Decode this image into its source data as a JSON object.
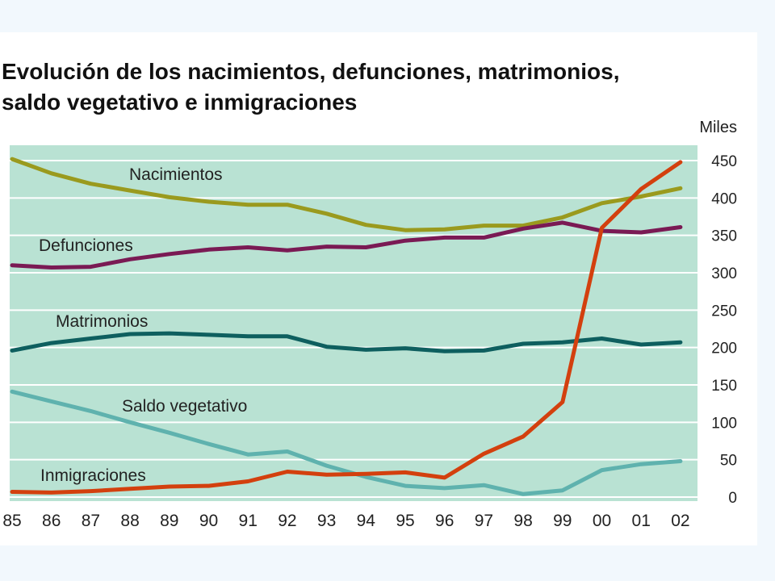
{
  "title_lines": [
    "Evolución de los nacimientos, defunciones, matrimonios,",
    "saldo vegetativo e inmigraciones"
  ],
  "colors": {
    "background": "#f2f8fd",
    "plot_background": "#b9e2d3",
    "gridline": "#ffffff"
  },
  "chart_data": {
    "type": "line",
    "title": "Evolución de los nacimientos, defunciones, matrimonios, saldo vegetativo e inmigraciones",
    "unit_label": "Miles",
    "xlabel": "",
    "ylabel": "",
    "x": [
      "85",
      "86",
      "87",
      "88",
      "89",
      "90",
      "91",
      "92",
      "93",
      "94",
      "95",
      "96",
      "97",
      "98",
      "99",
      "00",
      "01",
      "02"
    ],
    "ylim": [
      0,
      450
    ],
    "yticks": [
      0,
      50,
      100,
      150,
      200,
      250,
      300,
      350,
      400,
      450
    ],
    "y_axis_side": "right",
    "grid": true,
    "legend": "inline labels on lines",
    "series": [
      {
        "name": "Nacimientos",
        "color": "#9a9a1e",
        "values": [
          452,
          433,
          419,
          410,
          401,
          395,
          391,
          391,
          379,
          364,
          357,
          358,
          363,
          363,
          374,
          393,
          402,
          413
        ]
      },
      {
        "name": "Defunciones",
        "color": "#7a1a54",
        "values": [
          310,
          307,
          308,
          318,
          325,
          331,
          334,
          330,
          335,
          334,
          343,
          347,
          347,
          359,
          367,
          356,
          354,
          361
        ]
      },
      {
        "name": "Matrimonios",
        "color": "#0e5f5f",
        "values": [
          196,
          206,
          212,
          218,
          219,
          217,
          215,
          215,
          201,
          197,
          199,
          195,
          196,
          205,
          207,
          212,
          204,
          207
        ]
      },
      {
        "name": "Saldo vegetativo",
        "color": "#5fb2ae",
        "values": [
          141,
          128,
          115,
          100,
          86,
          71,
          57,
          61,
          42,
          27,
          15,
          12,
          16,
          4,
          9,
          36,
          44,
          48
        ]
      },
      {
        "name": "Inmigraciones",
        "color": "#d3400e",
        "values": [
          7,
          6,
          8,
          11,
          14,
          15,
          21,
          34,
          30,
          31,
          33,
          26,
          58,
          81,
          127,
          360,
          412,
          448
        ]
      }
    ]
  }
}
